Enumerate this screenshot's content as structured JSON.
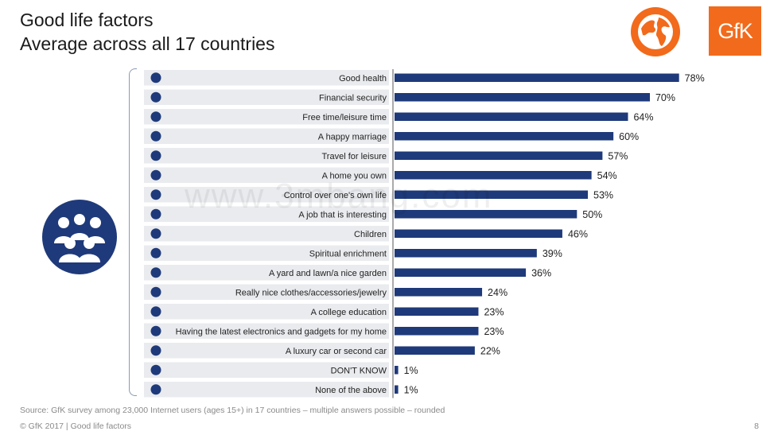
{
  "header": {
    "title_line1": "Good life factors",
    "title_line2": "Average across all 17 countries"
  },
  "brand": {
    "logo_text": "GfK",
    "accent_color": "#f26a1b",
    "bar_color": "#1f3a7a"
  },
  "watermark_text": "www.3mbang.com",
  "icons": {
    "globe": "globe-icon",
    "group": "people-group-icon",
    "rows": [
      "heart-icon",
      "money-icon",
      "clock-icon",
      "couple-icon",
      "palm-tree-icon",
      "house-icon",
      "signpost-icon",
      "briefcase-icon",
      "children-icon",
      "book-icon",
      "tree-icon",
      "shirt-icon",
      "graduation-cap-icon",
      "laptop-icon",
      "car-icon",
      "question-icon",
      "cross-icon"
    ]
  },
  "chart_data": {
    "type": "bar",
    "orientation": "horizontal",
    "title": "",
    "categories": [
      "Good health",
      "Financial security",
      "Free time/leisure time",
      "A happy marriage",
      "Travel for leisure",
      "A home you own",
      "Control over one's own life",
      "A job that is interesting",
      "Children",
      "Spiritual enrichment",
      "A yard and lawn/a nice garden",
      "Really nice clothes/accessories/jewelry",
      "A college education",
      "Having the latest electronics and gadgets for my home",
      "A luxury car or second car",
      "DON'T KNOW",
      "None of the above"
    ],
    "values": [
      78,
      70,
      64,
      60,
      57,
      54,
      53,
      50,
      46,
      39,
      36,
      24,
      23,
      23,
      22,
      1,
      1
    ],
    "value_labels": [
      "78%",
      "70%",
      "64%",
      "60%",
      "57%",
      "54%",
      "53%",
      "50%",
      "46%",
      "39%",
      "36%",
      "24%",
      "23%",
      "23%",
      "22%",
      "1%",
      "1%"
    ],
    "unit": "%",
    "xlim": [
      0,
      100
    ],
    "grid": false,
    "legend": "none"
  },
  "footer": {
    "source": "Source: GfK survey among 23,000 Internet users (ages 15+) in 17 countries – multiple answers possible – rounded",
    "copyright": "© GfK 2017 | Good life factors",
    "page_number": "8"
  }
}
